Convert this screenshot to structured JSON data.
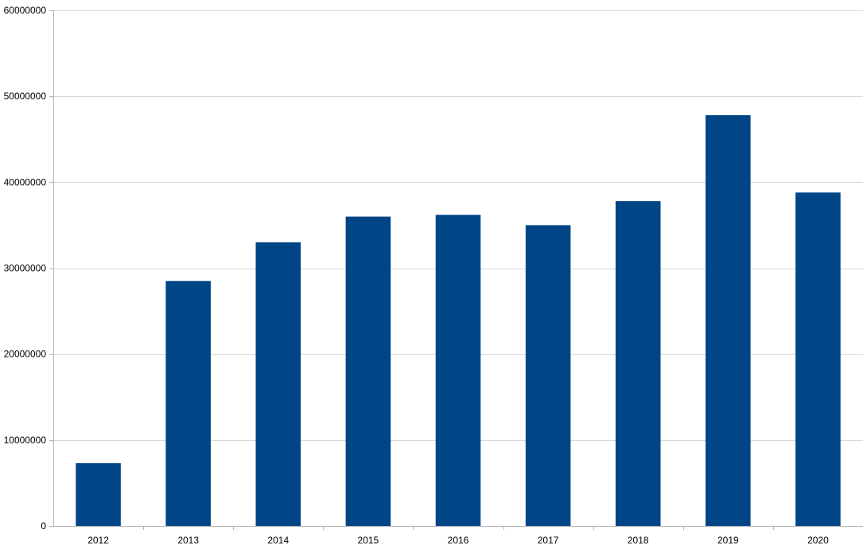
{
  "colors": {
    "bar": "#004586",
    "grid": "#d9d9d9",
    "axis": "#b3b3b3",
    "text": "#000000",
    "background": "#ffffff"
  },
  "chart_data": {
    "type": "bar",
    "title": "",
    "xlabel": "",
    "ylabel": "",
    "categories": [
      "2012",
      "2013",
      "2014",
      "2015",
      "2016",
      "2017",
      "2018",
      "2019",
      "2020"
    ],
    "series": [
      {
        "values": [
          7300000,
          28500000,
          33000000,
          36000000,
          36200000,
          35000000,
          37800000,
          47800000,
          38800000
        ]
      }
    ],
    "ylim": [
      0,
      60000000
    ],
    "yticks": [
      "0",
      "10000000",
      "20000000",
      "30000000",
      "40000000",
      "50000000",
      "60000000"
    ],
    "grid": true,
    "legend": "none"
  }
}
